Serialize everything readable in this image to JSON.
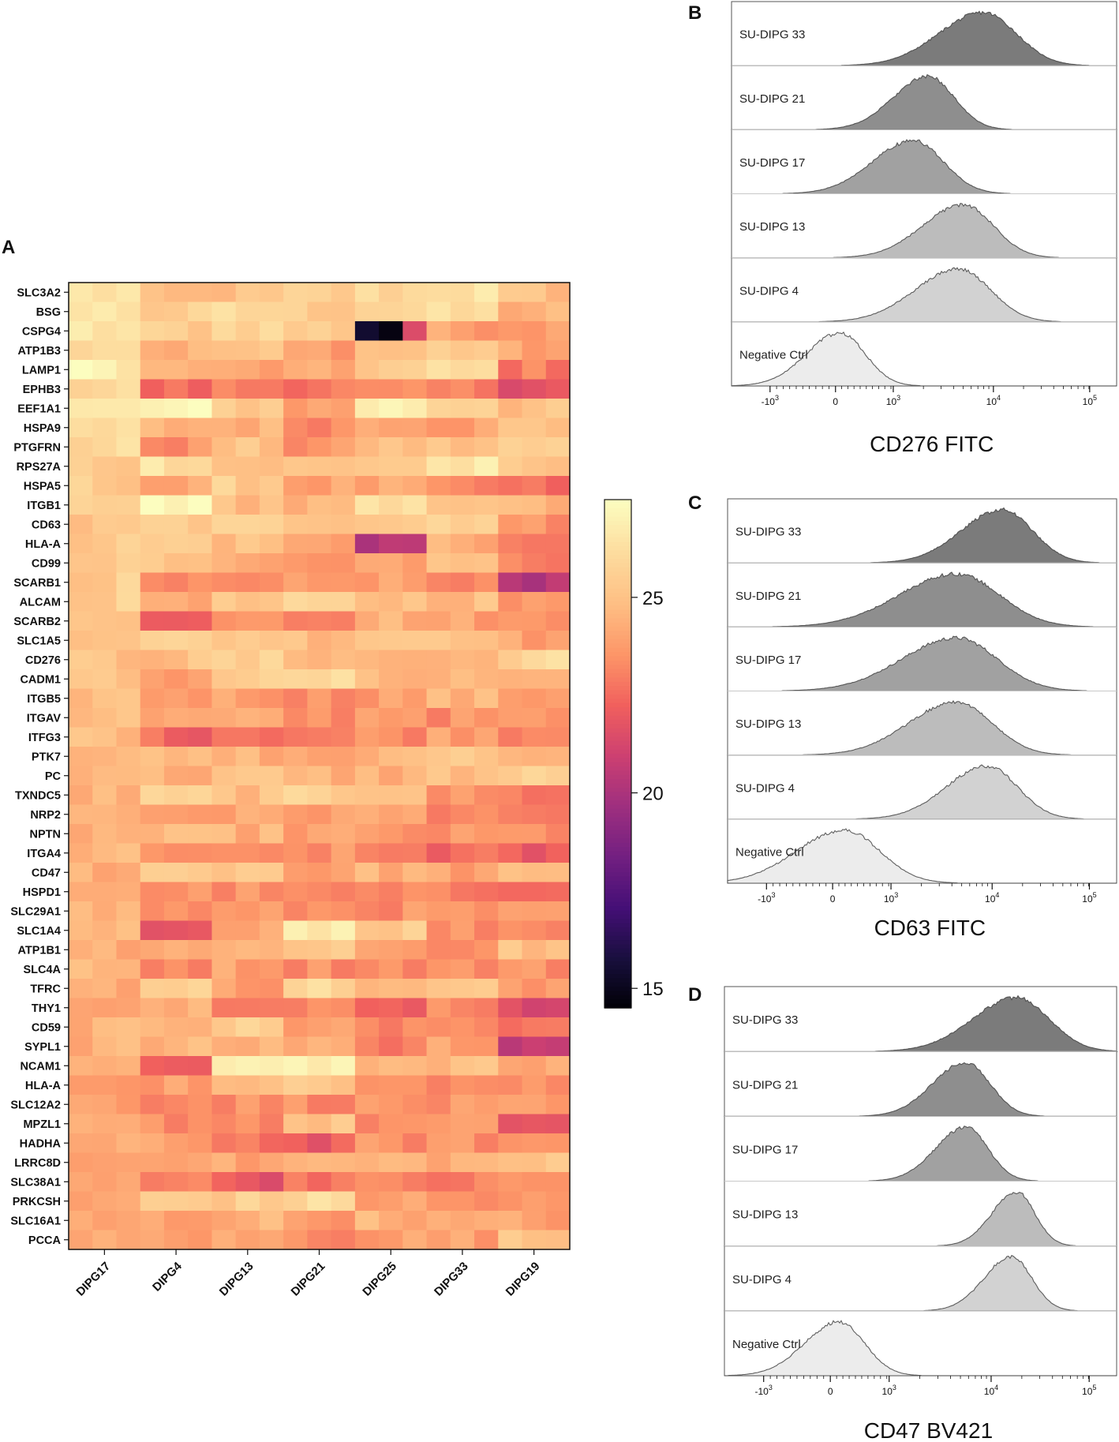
{
  "chart_data": {
    "heatmap": {
      "panel": "A",
      "type": "heatmap",
      "rows": [
        "SLC3A2",
        "BSG",
        "CSPG4",
        "ATP1B3",
        "LAMP1",
        "EPHB3",
        "EEF1A1",
        "HSPA9",
        "PTGFRN",
        "RPS27A",
        "HSPA5",
        "ITGB1",
        "CD63",
        "HLA-A",
        "CD99",
        "SCARB1",
        "ALCAM",
        "SCARB2",
        "SLC1A5",
        "CD276",
        "CADM1",
        "ITGB5",
        "ITGAV",
        "ITFG3",
        "PTK7",
        "PC",
        "TXNDC5",
        "NRP2",
        "NPTN",
        "ITGA4",
        "CD47",
        "HSPD1",
        "SLC29A1",
        "SLC1A4",
        "ATP1B1",
        "SLC4A",
        "TFRC",
        "THY1",
        "CD59",
        "SYPL1",
        "NCAM1",
        "HLA-A",
        "SLC12A2",
        "MPZL1",
        "HADHA",
        "LRRC8D",
        "SLC38A1",
        "PRKCSH",
        "SLC16A1",
        "PCCA"
      ],
      "columns": [
        "DIPG17",
        "DIPG4",
        "DIPG13",
        "DIPG21",
        "DIPG25",
        "DIPG33",
        "DIPG19"
      ],
      "reps_per_column": 3,
      "values": [
        [
          26.5,
          24.5,
          25,
          25.5,
          26,
          26.5,
          25
        ],
        [
          26.5,
          25.5,
          26,
          25.5,
          26,
          26,
          24.5
        ],
        [
          26.5,
          25.5,
          26,
          25.5,
          15,
          24,
          24
        ],
        [
          26.5,
          24.5,
          25,
          24,
          25,
          25.5,
          24
        ],
        [
          27,
          24.5,
          24,
          24,
          25.5,
          26,
          23
        ],
        [
          26,
          22.5,
          23,
          23,
          23,
          23,
          22
        ],
        [
          26.5,
          27,
          25.5,
          24,
          27,
          26,
          25
        ],
        [
          26,
          24.5,
          24.5,
          23.5,
          24.5,
          24,
          25
        ],
        [
          26,
          23.5,
          25,
          23.5,
          25,
          25,
          25.5
        ],
        [
          25.5,
          26.5,
          25,
          25,
          25.5,
          26.5,
          25
        ],
        [
          25.5,
          24,
          25.5,
          24,
          24,
          23,
          22.5
        ],
        [
          25.5,
          27.5,
          25,
          24.5,
          26,
          25.5,
          24.5
        ],
        [
          25,
          25.5,
          25.5,
          25.5,
          25.5,
          26,
          23.5
        ],
        [
          25.5,
          25.5,
          25,
          24,
          20.5,
          24.5,
          22.5
        ],
        [
          25.5,
          25,
          24,
          23.5,
          24,
          25.5,
          23
        ],
        [
          25.5,
          23,
          23,
          23.5,
          24,
          23,
          20.5
        ],
        [
          25.5,
          24.5,
          25,
          25.5,
          25,
          25,
          23.5
        ],
        [
          25.5,
          22,
          24,
          23.5,
          24.5,
          24,
          23.5
        ],
        [
          25.5,
          25.5,
          25.5,
          25,
          25.5,
          25.5,
          24
        ],
        [
          25,
          25,
          25.5,
          25,
          24.5,
          24.5,
          26
        ],
        [
          25,
          24,
          25.5,
          26,
          24.5,
          24.5,
          24
        ],
        [
          25,
          24,
          24,
          23.5,
          24,
          24.5,
          24
        ],
        [
          25,
          24,
          24,
          23.5,
          24,
          23.5,
          23.5
        ],
        [
          25,
          22.5,
          23,
          23,
          23.5,
          24,
          23.5
        ],
        [
          25,
          24.5,
          24.5,
          24,
          24.5,
          25.5,
          24.5
        ],
        [
          25,
          24.5,
          25,
          24.5,
          24.5,
          25,
          25.5
        ],
        [
          24.5,
          25.5,
          25,
          25.5,
          25.5,
          23.5,
          23
        ],
        [
          24.5,
          24,
          24,
          24,
          24,
          23.5,
          22.5
        ],
        [
          24.5,
          24.5,
          24.5,
          24,
          23.5,
          23.5,
          23.5
        ],
        [
          24.5,
          23.5,
          23,
          23.5,
          23,
          22.5,
          22
        ],
        [
          24.5,
          25.5,
          25.5,
          24,
          24.5,
          24,
          24.5
        ],
        [
          24.5,
          23.5,
          23.5,
          23,
          23,
          23,
          23
        ],
        [
          24.5,
          23.5,
          23.5,
          23.5,
          23.5,
          23.5,
          23.5
        ],
        [
          24.5,
          21.5,
          24.5,
          27,
          25.5,
          23.5,
          23.5
        ],
        [
          24.5,
          24.5,
          24.5,
          25.5,
          24,
          23.5,
          25
        ],
        [
          24.5,
          23.5,
          24,
          23.5,
          23.5,
          23.5,
          23.5
        ],
        [
          24.5,
          25.5,
          24,
          26,
          24.5,
          25,
          24
        ],
        [
          24.5,
          24.5,
          23.5,
          23.5,
          22,
          23.5,
          21.5
        ],
        [
          24.5,
          25,
          25.5,
          24,
          23,
          23.5,
          23
        ],
        [
          24.5,
          24.5,
          24.5,
          24.5,
          23,
          24,
          21
        ],
        [
          24,
          22.5,
          26.5,
          27,
          24.5,
          25,
          24
        ],
        [
          24,
          24,
          24.5,
          25.5,
          24,
          23.5,
          23.5
        ],
        [
          24,
          23.5,
          23.5,
          23.5,
          23.5,
          23.5,
          23.5
        ],
        [
          24,
          23.5,
          23.5,
          25,
          23.5,
          23.5,
          22
        ],
        [
          24,
          24,
          23,
          22,
          23.5,
          23.5,
          23.5
        ],
        [
          24,
          24.5,
          24,
          24.5,
          24.5,
          24.5,
          25
        ],
        [
          24,
          23.5,
          22,
          23,
          23,
          23,
          23.5
        ],
        [
          24,
          25.5,
          25.5,
          26,
          24,
          23.5,
          23.5
        ],
        [
          24,
          24,
          24.5,
          24,
          24.5,
          24,
          24
        ],
        [
          24,
          24,
          24,
          23.5,
          24,
          24,
          25
        ]
      ],
      "colorbar": {
        "min": 14.5,
        "max": 27.5,
        "ticks": [
          15,
          20,
          25
        ]
      }
    },
    "histograms": [
      {
        "panel": "B",
        "type": "histogram",
        "xlabel": "CD276 FITC",
        "samples": [
          {
            "name": "SU-DIPG 33",
            "peak_log10": 3.9,
            "width": 0.33,
            "shade": "#7b7b7b"
          },
          {
            "name": "SU-DIPG 21",
            "peak_log10": 3.35,
            "width": 0.26,
            "shade": "#8e8e8e"
          },
          {
            "name": "SU-DIPG 17",
            "peak_log10": 3.2,
            "width": 0.3,
            "shade": "#a1a1a1"
          },
          {
            "name": "SU-DIPG 13",
            "peak_log10": 3.7,
            "width": 0.3,
            "shade": "#bcbcbc"
          },
          {
            "name": "SU-DIPG 4",
            "peak_log10": 3.65,
            "width": 0.32,
            "shade": "#d2d2d2"
          },
          {
            "name": "Negative Ctrl",
            "peak_lin": 80,
            "width": 0.25,
            "shade": "#ececec"
          }
        ],
        "ticks": [
          "-10",
          "0",
          "10",
          "10",
          "10"
        ],
        "tick_exponents": [
          "3",
          "",
          "3",
          "4",
          "5"
        ]
      },
      {
        "panel": "C",
        "type": "histogram",
        "xlabel": "CD63 FITC",
        "samples": [
          {
            "name": "SU-DIPG 33",
            "peak_log10": 4.1,
            "width": 0.3,
            "shade": "#7b7b7b"
          },
          {
            "name": "SU-DIPG 21",
            "peak_log10": 3.65,
            "width": 0.42,
            "shade": "#8e8e8e"
          },
          {
            "name": "SU-DIPG 17",
            "peak_log10": 3.65,
            "width": 0.4,
            "shade": "#a1a1a1"
          },
          {
            "name": "SU-DIPG 13",
            "peak_log10": 3.65,
            "width": 0.35,
            "shade": "#bcbcbc"
          },
          {
            "name": "SU-DIPG 4",
            "peak_log10": 3.95,
            "width": 0.3,
            "shade": "#d2d2d2"
          },
          {
            "name": "Negative Ctrl",
            "peak_lin": 200,
            "width": 0.35,
            "shade": "#ececec"
          }
        ],
        "ticks": [
          "-10",
          "0",
          "10",
          "10",
          "10"
        ],
        "tick_exponents": [
          "3",
          "",
          "3",
          "4",
          "5"
        ]
      },
      {
        "panel": "D",
        "type": "histogram",
        "xlabel": "CD47 BV421",
        "samples": [
          {
            "name": "SU-DIPG 33",
            "peak_log10": 4.25,
            "width": 0.32,
            "shade": "#7b7b7b"
          },
          {
            "name": "SU-DIPG 21",
            "peak_log10": 3.75,
            "width": 0.24,
            "shade": "#8e8e8e"
          },
          {
            "name": "SU-DIPG 17",
            "peak_log10": 3.75,
            "width": 0.22,
            "shade": "#a1a1a1"
          },
          {
            "name": "SU-DIPG 13",
            "peak_log10": 4.25,
            "width": 0.18,
            "shade": "#bcbcbc"
          },
          {
            "name": "SU-DIPG 4",
            "peak_log10": 4.2,
            "width": 0.2,
            "shade": "#d2d2d2"
          },
          {
            "name": "Negative Ctrl",
            "peak_lin": 150,
            "width": 0.25,
            "shade": "#ececec"
          }
        ],
        "ticks": [
          "-10",
          "0",
          "10",
          "10",
          "10"
        ],
        "tick_exponents": [
          "3",
          "",
          "3",
          "4",
          "5"
        ]
      }
    ]
  }
}
